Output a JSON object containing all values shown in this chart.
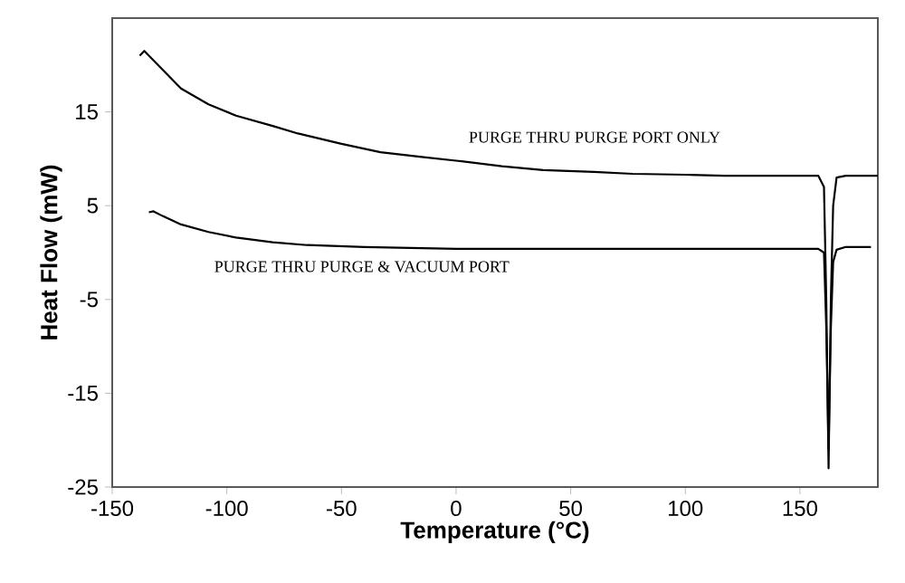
{
  "chart_data": {
    "type": "line",
    "xlabel": "Temperature (°C)",
    "ylabel": "Heat Flow (mW)",
    "xlim": [
      -150,
      184
    ],
    "ylim": [
      -25,
      25
    ],
    "xticks": [
      -150,
      -100,
      -50,
      0,
      50,
      100,
      150
    ],
    "yticks": [
      -25,
      -15,
      -5,
      5,
      15
    ],
    "marker": "none",
    "line_style": "solid",
    "series": [
      {
        "color": "#000000",
        "x": [
          -138,
          -136,
          -134,
          -128,
          -120,
          -108,
          -96,
          -80,
          -69,
          -50,
          -33,
          -15,
          0,
          20,
          38,
          60,
          77,
          100,
          117,
          140,
          158,
          160.5,
          161.5,
          162.5,
          163.5,
          164.5,
          166,
          170,
          184
        ],
        "values": [
          21.0,
          21.5,
          21.0,
          19.5,
          17.5,
          15.8,
          14.6,
          13.5,
          12.7,
          11.6,
          10.7,
          10.2,
          9.8,
          9.2,
          8.8,
          8.6,
          8.4,
          8.3,
          8.2,
          8.2,
          8.2,
          7.0,
          -5,
          -23,
          -5,
          5,
          8.0,
          8.2,
          8.2
        ]
      },
      {
        "color": "#000000",
        "x": [
          -134,
          -132,
          -128,
          -120,
          -108,
          -96,
          -80,
          -65,
          -40,
          0,
          40,
          77,
          120,
          158,
          160.5,
          161.5,
          162.5,
          163.5,
          164.5,
          166,
          170,
          181
        ],
        "values": [
          4.3,
          4.4,
          3.9,
          3.0,
          2.2,
          1.6,
          1.1,
          0.8,
          0.6,
          0.4,
          0.4,
          0.4,
          0.4,
          0.4,
          0.0,
          -8,
          -21,
          -8,
          -1,
          0.3,
          0.6,
          0.6
        ]
      }
    ],
    "annotations": [
      "PURGE THRU PURGE PORT ONLY",
      "PURGE THRU PURGE & VACUUM PORT"
    ]
  }
}
